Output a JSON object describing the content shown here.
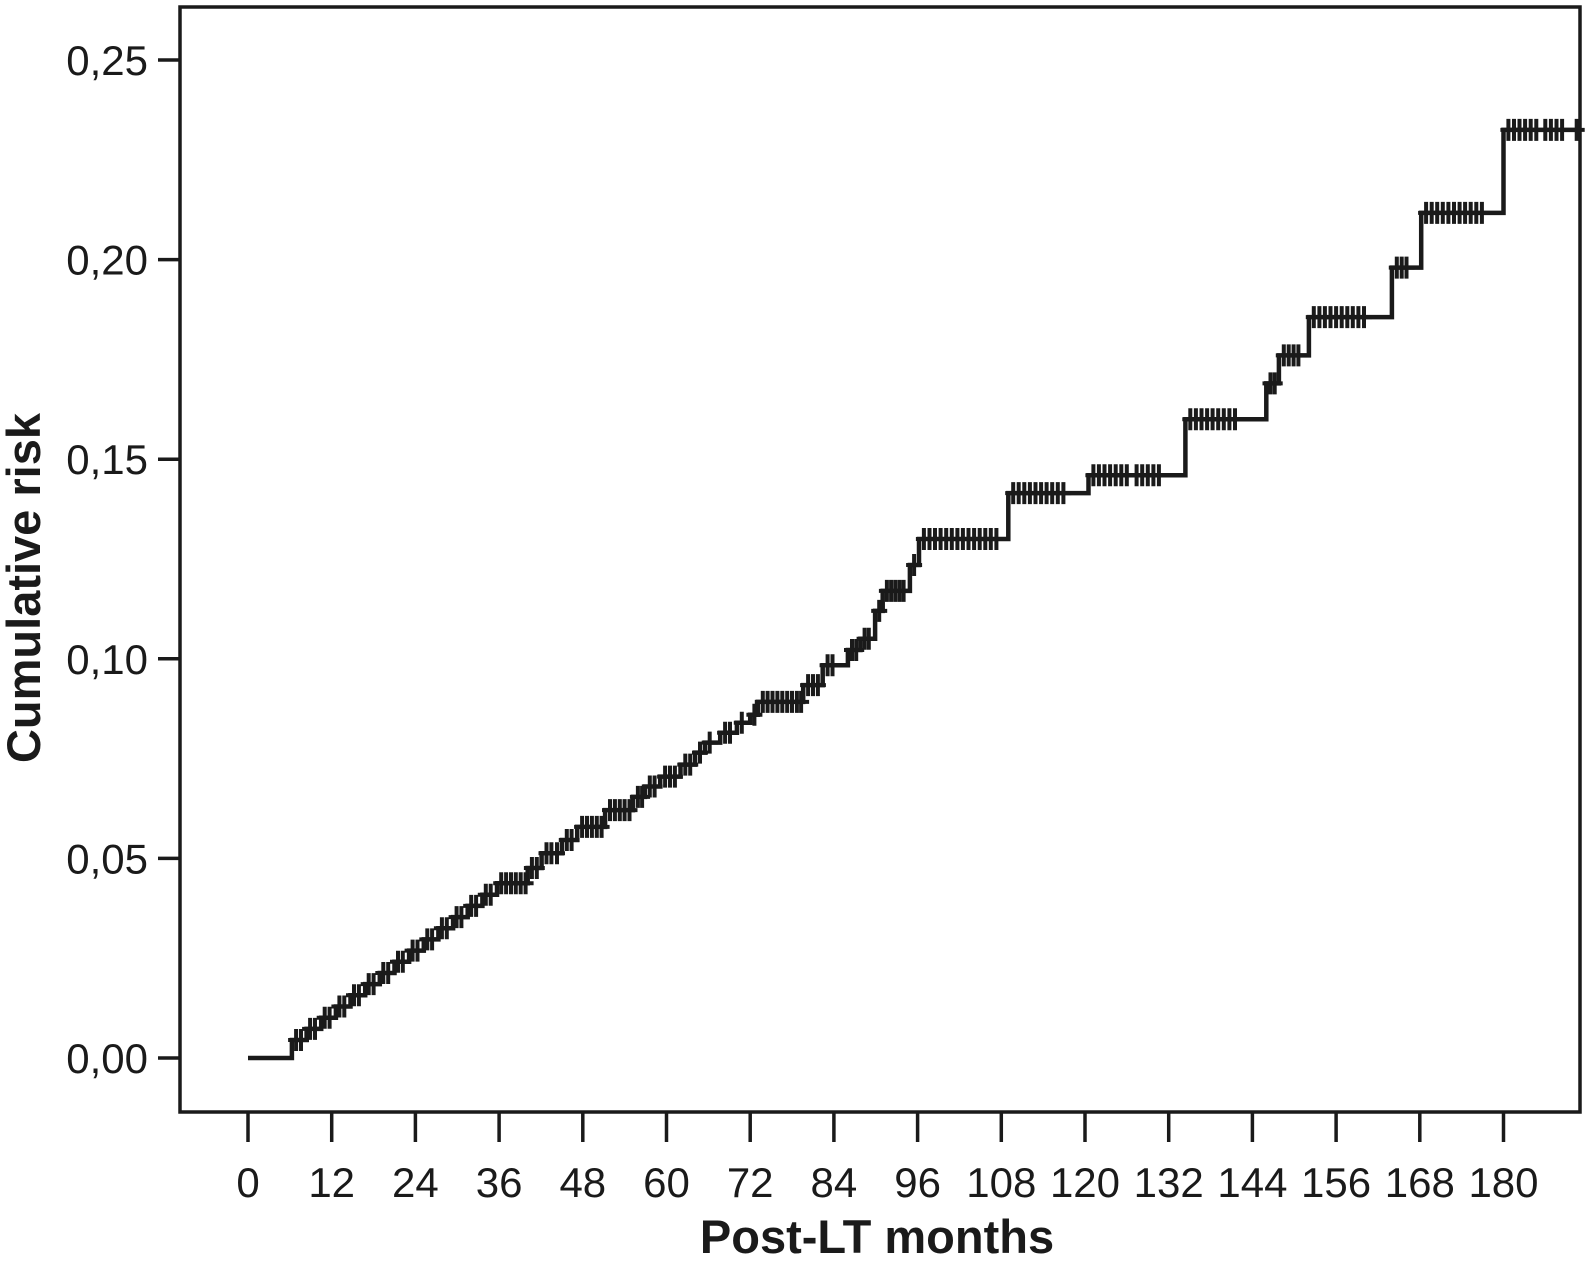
{
  "figure": {
    "background_color": "#ffffff",
    "line_color": "#1a1a1a"
  },
  "chart_data": {
    "type": "line",
    "subtype": "cumulative-incidence-step-curve-with-censor-marks",
    "title": "",
    "xlabel": "Post-LT months",
    "ylabel": "Cumulative risk",
    "xlim": [
      0,
      191
    ],
    "ylim": [
      0.0,
      0.26
    ],
    "grid": false,
    "legend": "none",
    "x_ticks": [
      {
        "value": 0,
        "label": "0"
      },
      {
        "value": 12,
        "label": "12"
      },
      {
        "value": 24,
        "label": "24"
      },
      {
        "value": 36,
        "label": "36"
      },
      {
        "value": 48,
        "label": "48"
      },
      {
        "value": 60,
        "label": "60"
      },
      {
        "value": 72,
        "label": "72"
      },
      {
        "value": 84,
        "label": "84"
      },
      {
        "value": 96,
        "label": "96"
      },
      {
        "value": 108,
        "label": "108"
      },
      {
        "value": 120,
        "label": "120"
      },
      {
        "value": 132,
        "label": "132"
      },
      {
        "value": 144,
        "label": "144"
      },
      {
        "value": 156,
        "label": "156"
      },
      {
        "value": 168,
        "label": "168"
      },
      {
        "value": 180,
        "label": "180"
      }
    ],
    "y_ticks": [
      {
        "value": 0.0,
        "label": "0,00"
      },
      {
        "value": 0.05,
        "label": "0,05"
      },
      {
        "value": 0.1,
        "label": "0,10"
      },
      {
        "value": 0.15,
        "label": "0,15"
      },
      {
        "value": 0.2,
        "label": "0,20"
      },
      {
        "value": 0.25,
        "label": "0,25"
      }
    ],
    "series": [
      {
        "name": "Cumulative risk",
        "draw_style": "steps-post",
        "end_time": 191,
        "steps": [
          [
            0,
            0.0
          ],
          [
            6.3,
            0.0045
          ],
          [
            8.4,
            0.0073
          ],
          [
            10.5,
            0.0101
          ],
          [
            12.6,
            0.0129
          ],
          [
            14.7,
            0.0157
          ],
          [
            16.8,
            0.0185
          ],
          [
            18.9,
            0.0213
          ],
          [
            21.0,
            0.0241
          ],
          [
            23.1,
            0.0269
          ],
          [
            25.2,
            0.0297
          ],
          [
            27.3,
            0.0325
          ],
          [
            29.4,
            0.0353
          ],
          [
            31.5,
            0.0381
          ],
          [
            33.6,
            0.0409
          ],
          [
            35.7,
            0.0438
          ],
          [
            40.1,
            0.0476
          ],
          [
            42.1,
            0.0513
          ],
          [
            45.0,
            0.0546
          ],
          [
            47.2,
            0.0579
          ],
          [
            51.2,
            0.0621
          ],
          [
            55.2,
            0.0654
          ],
          [
            56.9,
            0.068
          ],
          [
            59.1,
            0.0705
          ],
          [
            62.0,
            0.0735
          ],
          [
            64.1,
            0.0765
          ],
          [
            65.5,
            0.079
          ],
          [
            67.7,
            0.0815
          ],
          [
            70.1,
            0.084
          ],
          [
            72.0,
            0.086
          ],
          [
            73.1,
            0.0892
          ],
          [
            79.6,
            0.0934
          ],
          [
            82.4,
            0.0984
          ],
          [
            86.0,
            0.1022
          ],
          [
            87.8,
            0.105
          ],
          [
            89.9,
            0.112
          ],
          [
            91.0,
            0.117
          ],
          [
            94.9,
            0.1235
          ],
          [
            96.2,
            0.13
          ],
          [
            109.0,
            0.1415
          ],
          [
            120.5,
            0.146
          ],
          [
            134.4,
            0.16
          ],
          [
            146.0,
            0.169
          ],
          [
            147.8,
            0.176
          ],
          [
            152.1,
            0.1856
          ],
          [
            164.0,
            0.198
          ],
          [
            168.2,
            0.2117
          ],
          [
            180.0,
            0.2325
          ]
        ],
        "censor_times": [
          6.9,
          7.6,
          8.9,
          9.6,
          11.0,
          11.7,
          13.1,
          13.8,
          15.2,
          15.9,
          17.3,
          18.0,
          19.4,
          20.1,
          21.5,
          22.2,
          23.6,
          24.3,
          25.7,
          26.4,
          27.8,
          28.5,
          29.9,
          30.6,
          32.0,
          32.7,
          34.1,
          34.8,
          36.3,
          37.0,
          37.7,
          38.4,
          39.1,
          39.8,
          40.7,
          41.4,
          42.8,
          43.5,
          44.3,
          45.7,
          46.4,
          47.9,
          48.6,
          49.3,
          50.0,
          50.7,
          51.9,
          52.6,
          53.3,
          54.0,
          54.7,
          55.9,
          56.5,
          57.6,
          58.3,
          59.8,
          60.5,
          61.2,
          62.7,
          63.4,
          64.8,
          66.2,
          68.4,
          69.1,
          70.8,
          72.6,
          73.8,
          74.5,
          75.2,
          75.9,
          76.6,
          77.3,
          78.0,
          78.7,
          79.3,
          80.3,
          81.0,
          81.7,
          83.1,
          83.8,
          86.6,
          87.2,
          88.4,
          89.0,
          90.5,
          91.6,
          92.2,
          92.8,
          93.4,
          94.0,
          95.5,
          96.9,
          97.7,
          98.5,
          99.3,
          100.1,
          100.9,
          101.7,
          102.5,
          103.3,
          104.1,
          104.9,
          105.7,
          106.5,
          107.3,
          109.7,
          110.5,
          111.3,
          112.1,
          112.9,
          113.7,
          114.5,
          115.3,
          116.1,
          116.9,
          121.2,
          122.0,
          122.8,
          123.6,
          124.4,
          125.2,
          126.0,
          127.4,
          128.2,
          129.0,
          129.8,
          130.6,
          135.1,
          135.9,
          136.7,
          137.5,
          138.3,
          139.1,
          139.9,
          140.7,
          141.5,
          146.6,
          147.2,
          148.5,
          149.2,
          149.9,
          150.6,
          152.8,
          153.6,
          154.4,
          155.2,
          156.0,
          156.8,
          157.6,
          158.4,
          159.2,
          160.0,
          164.7,
          165.4,
          166.1,
          168.9,
          169.7,
          170.5,
          171.3,
          172.1,
          172.9,
          173.7,
          174.5,
          175.3,
          176.1,
          176.9,
          180.7,
          181.5,
          182.3,
          183.1,
          183.9,
          184.7,
          186.0,
          186.8,
          187.6,
          188.4,
          190.5
        ]
      }
    ]
  }
}
